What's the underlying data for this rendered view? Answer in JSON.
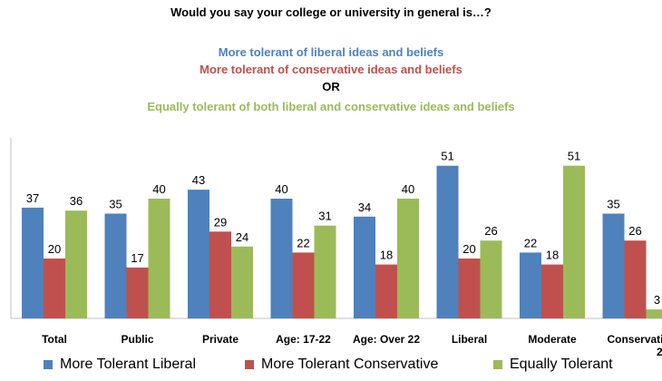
{
  "colors": {
    "liberal": "#4f81bd",
    "conservative": "#c0504d",
    "equal": "#9bbb59"
  },
  "chart_data": {
    "type": "bar",
    "title": "Would you say your college or university in general is…?",
    "subtitle": {
      "liberal": "More tolerant of liberal ideas and beliefs",
      "conservative": "More tolerant of conservative ideas and beliefs",
      "or": "OR",
      "equal": "Equally tolerant of both liberal and conservative ideas and beliefs"
    },
    "categories": [
      "Total",
      "Public",
      "Private",
      "Age: 17-22",
      "Age: Over 22",
      "Liberal",
      "Moderate",
      "Conservati"
    ],
    "series": [
      {
        "name": "More Tolerant Liberal",
        "values": [
          37,
          35,
          43,
          40,
          34,
          51,
          22,
          35
        ]
      },
      {
        "name": "More Tolerant Conservative",
        "values": [
          20,
          17,
          29,
          22,
          18,
          20,
          18,
          26
        ]
      },
      {
        "name": "Equally Tolerant",
        "values": [
          36,
          40,
          24,
          31,
          40,
          26,
          51,
          3
        ]
      }
    ],
    "ylim": [
      0,
      60
    ],
    "xlabel": "",
    "ylabel": "",
    "grid": false,
    "legend": "bottom",
    "cutoff_fragment": "2"
  }
}
